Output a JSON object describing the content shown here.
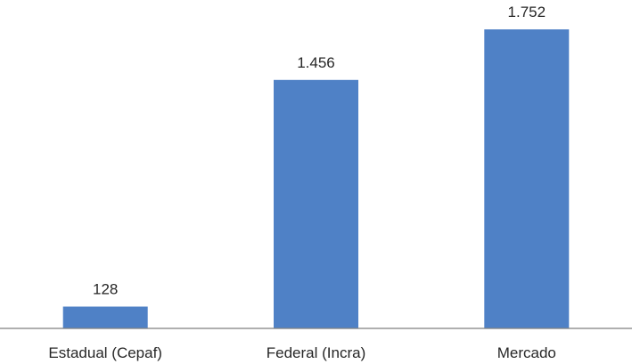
{
  "chart_data": {
    "type": "bar",
    "categories": [
      "Estadual (Cepaf)",
      "Federal (Incra)",
      "Mercado"
    ],
    "values": [
      128,
      1456,
      1752
    ],
    "data_labels": [
      "128",
      "1.456",
      "1.752"
    ],
    "title": "",
    "xlabel": "",
    "ylabel": "",
    "ylim": [
      0,
      1752
    ],
    "grid": false,
    "legend": "none",
    "colors": {
      "bar": "#4F81C6",
      "axis": "#7F7F7F",
      "text": "#262626"
    }
  }
}
